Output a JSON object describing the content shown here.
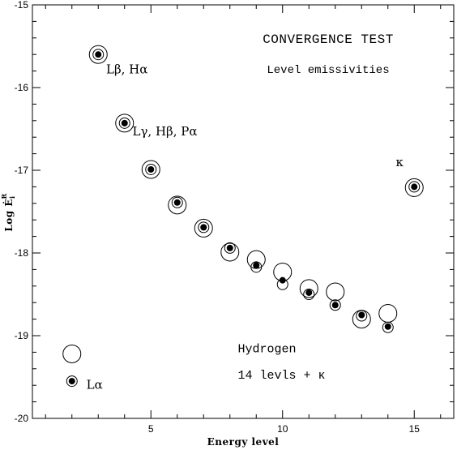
{
  "chart_data": {
    "type": "scatter",
    "title": "CONVERGENCE TEST",
    "subtitle": "Level emissivities",
    "xlabel": "Energy level",
    "ylabel": "Log Ė",
    "ylabel_sup": "R",
    "ylabel_sub": "i",
    "xlim": [
      0.5,
      16.5
    ],
    "ylim": [
      -20,
      -15
    ],
    "x_ticks": [
      5,
      10,
      15
    ],
    "y_ticks": [
      -15,
      -16,
      -17,
      -18,
      -19,
      -20
    ],
    "grid": false,
    "series": [
      {
        "marker": "open-circle-large",
        "points": [
          {
            "x": 2,
            "y": -19.22
          },
          {
            "x": 3,
            "y": -15.6
          },
          {
            "x": 4,
            "y": -16.43
          },
          {
            "x": 5,
            "y": -16.99
          },
          {
            "x": 6,
            "y": -17.42
          },
          {
            "x": 7,
            "y": -17.7
          },
          {
            "x": 8,
            "y": -17.99
          },
          {
            "x": 9,
            "y": -18.08
          },
          {
            "x": 10,
            "y": -18.23
          },
          {
            "x": 11,
            "y": -18.43
          },
          {
            "x": 12,
            "y": -18.47
          },
          {
            "x": 13,
            "y": -18.8
          },
          {
            "x": 14,
            "y": -18.73
          },
          {
            "x": 15,
            "y": -17.21
          }
        ]
      },
      {
        "marker": "open-circle-small",
        "points": [
          {
            "x": 2,
            "y": -19.55
          },
          {
            "x": 3,
            "y": -15.6
          },
          {
            "x": 4,
            "y": -16.43
          },
          {
            "x": 5,
            "y": -16.99
          },
          {
            "x": 6,
            "y": -17.39
          },
          {
            "x": 7,
            "y": -17.69
          },
          {
            "x": 8,
            "y": -17.94
          },
          {
            "x": 9,
            "y": -18.17
          },
          {
            "x": 10,
            "y": -18.38
          },
          {
            "x": 11,
            "y": -18.5
          },
          {
            "x": 12,
            "y": -18.63
          },
          {
            "x": 13,
            "y": -18.76
          },
          {
            "x": 14,
            "y": -18.9
          },
          {
            "x": 15,
            "y": -17.2
          }
        ]
      },
      {
        "marker": "filled-dot",
        "points": [
          {
            "x": 2,
            "y": -19.55
          },
          {
            "x": 3,
            "y": -15.6
          },
          {
            "x": 4,
            "y": -16.43
          },
          {
            "x": 5,
            "y": -16.99
          },
          {
            "x": 6,
            "y": -17.39
          },
          {
            "x": 7,
            "y": -17.69
          },
          {
            "x": 8,
            "y": -17.94
          },
          {
            "x": 9,
            "y": -18.15
          },
          {
            "x": 10,
            "y": -18.33
          },
          {
            "x": 11,
            "y": -18.48
          },
          {
            "x": 12,
            "y": -18.63
          },
          {
            "x": 13,
            "y": -18.75
          },
          {
            "x": 14,
            "y": -18.89
          },
          {
            "x": 15,
            "y": -17.2
          }
        ]
      }
    ],
    "annotations": [
      {
        "text": "Lβ,  Hα",
        "x": 3.3,
        "y": -15.83
      },
      {
        "text": "Lγ,  Hβ,  Pα",
        "x": 4.3,
        "y": -16.58
      },
      {
        "text": "κ",
        "x": 14.3,
        "y": -16.95
      },
      {
        "text": "Lα",
        "x": 2.55,
        "y": -19.64
      },
      {
        "text": "Hydrogen",
        "x": 8.3,
        "y": -19.2
      },
      {
        "text": "14 levls + κ",
        "x": 8.3,
        "y": -19.52
      }
    ]
  }
}
